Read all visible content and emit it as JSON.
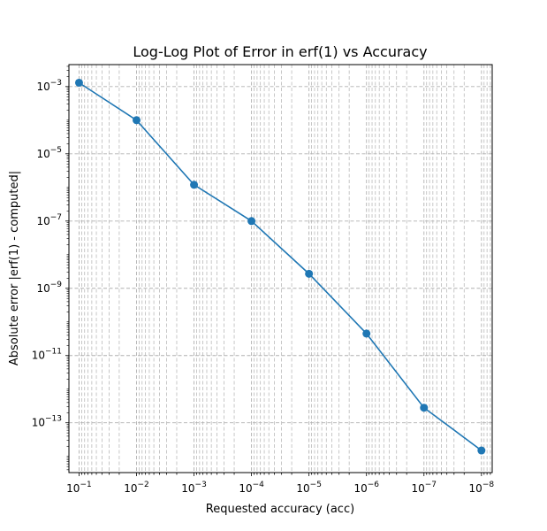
{
  "chart_data": {
    "type": "line",
    "title": "Log-Log Plot of Error in erf(1) vs Accuracy",
    "xlabel": "Requested accuracy (acc)",
    "ylabel": "Absolute error |erf(1) - computed|",
    "xscale": "log",
    "yscale": "log",
    "x_inverted": true,
    "xlim": [
      0.15,
      6.5e-09
    ],
    "ylim": [
      3.3e-15,
      0.0045
    ],
    "grid": "both",
    "x_ticks": [
      {
        "value": 0.1,
        "base": "10",
        "exp": "−1"
      },
      {
        "value": 0.01,
        "base": "10",
        "exp": "−2"
      },
      {
        "value": 0.001,
        "base": "10",
        "exp": "−3"
      },
      {
        "value": 0.0001,
        "base": "10",
        "exp": "−4"
      },
      {
        "value": 1e-05,
        "base": "10",
        "exp": "−5"
      },
      {
        "value": 1e-06,
        "base": "10",
        "exp": "−6"
      },
      {
        "value": 1e-07,
        "base": "10",
        "exp": "−7"
      },
      {
        "value": 1e-08,
        "base": "10",
        "exp": "−8"
      }
    ],
    "y_ticks": [
      {
        "value": 0.001,
        "base": "10",
        "exp": "−3"
      },
      {
        "value": 1e-05,
        "base": "10",
        "exp": "−5"
      },
      {
        "value": 1e-07,
        "base": "10",
        "exp": "−7"
      },
      {
        "value": 1e-09,
        "base": "10",
        "exp": "−9"
      },
      {
        "value": 1e-11,
        "base": "10",
        "exp": "−11"
      },
      {
        "value": 1e-13,
        "base": "10",
        "exp": "−13"
      }
    ],
    "series": [
      {
        "color": "#1f77b4",
        "marker": "circle",
        "x": [
          0.1,
          0.01,
          0.001,
          0.0001,
          1e-05,
          1e-06,
          1e-07,
          1e-08
        ],
        "y": [
          0.0013,
          0.0001,
          1.2e-06,
          1e-07,
          2.7e-09,
          4.5e-11,
          2.8e-13,
          1.5e-14
        ]
      }
    ]
  }
}
